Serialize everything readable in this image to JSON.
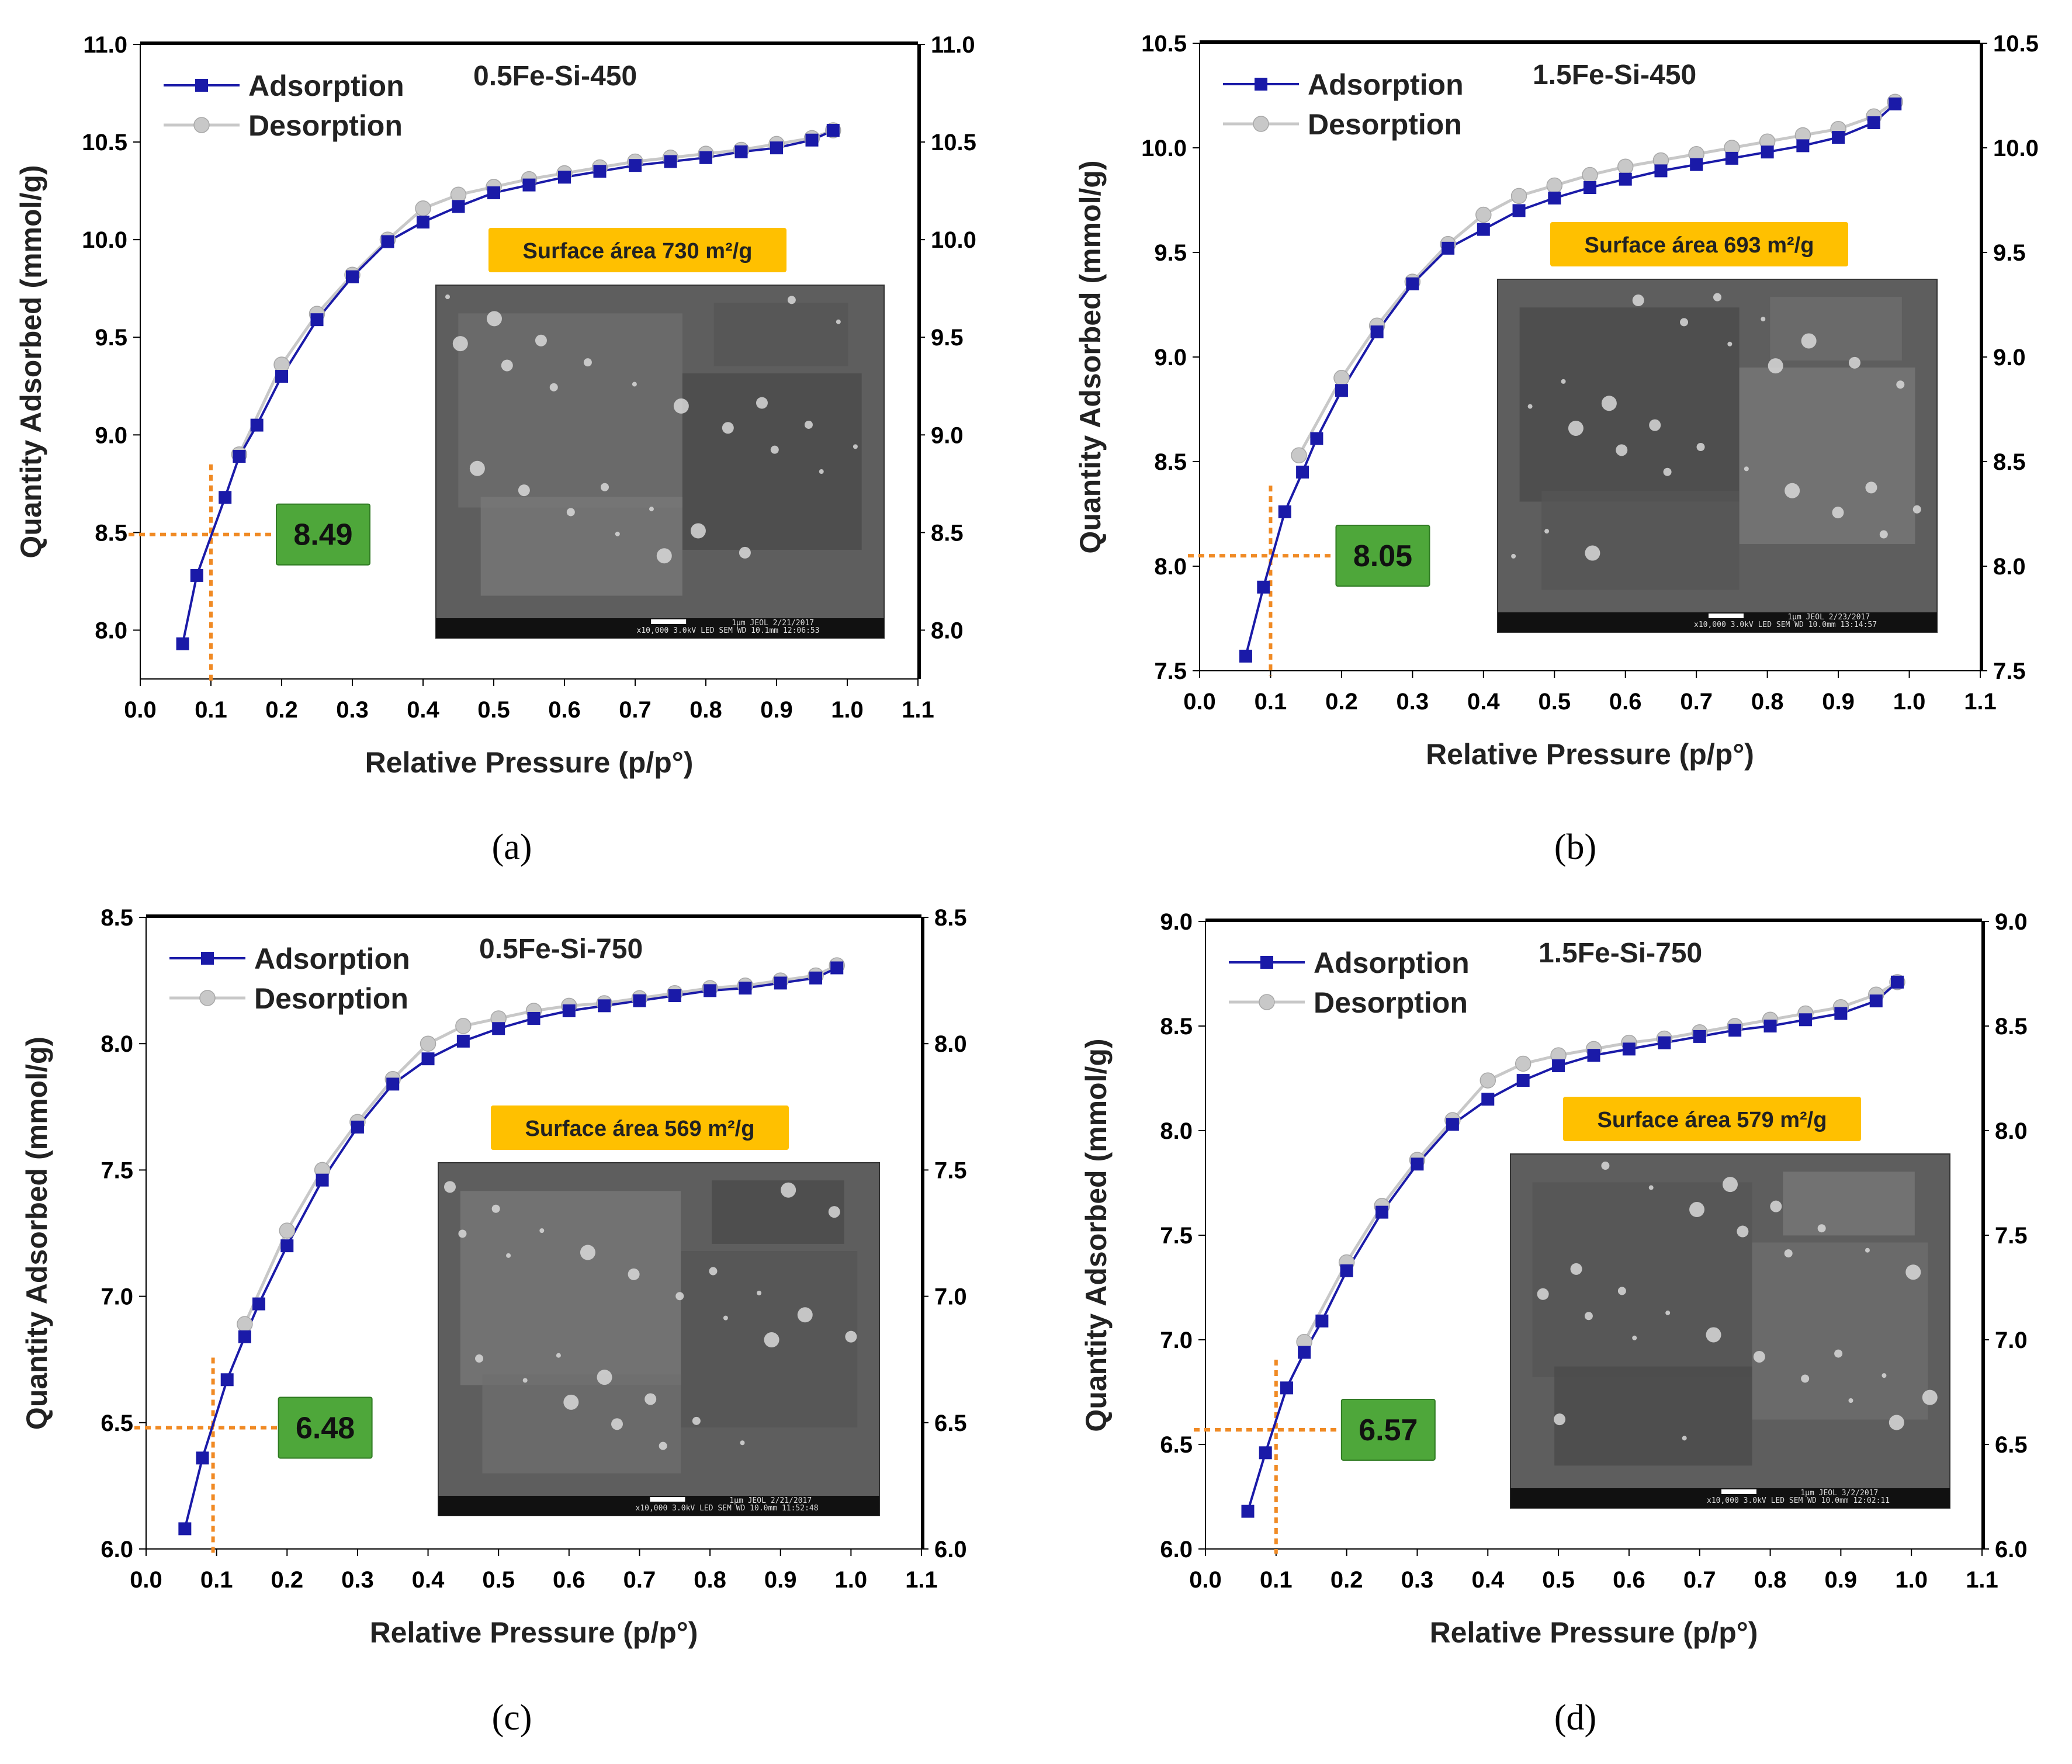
{
  "figure": {
    "colors": {
      "adsorption": "#1a1aa8",
      "desorption": "#c8c8c8",
      "guide": "#f08a24",
      "valueBox": "#4ea73a",
      "areaBox": "#ffc000",
      "axis": "#000000",
      "sem": "#5e5e5e"
    }
  },
  "chart_data": [
    {
      "type": "line",
      "caption": "(a)",
      "title": "0.5Fe-Si-450",
      "xlabel": "Relative Pressure (p/p°)",
      "ylabel": "Quantity Adsorbed (mmol/g)",
      "xlim": [
        0.0,
        1.1
      ],
      "ylim": [
        7.75,
        11.0
      ],
      "xticks": [
        "0.0",
        "0.1",
        "0.2",
        "0.3",
        "0.4",
        "0.5",
        "0.6",
        "0.7",
        "0.8",
        "0.9",
        "1.0",
        "1.1"
      ],
      "yticks": [
        "8.0",
        "8.5",
        "9.0",
        "9.5",
        "10.0",
        "10.5",
        "11.0"
      ],
      "legend": [
        "Adsorption",
        "Desorption"
      ],
      "surface_area": "Surface área 730 m²/g",
      "marker_value": "8.49",
      "marker_x": 0.1,
      "marker_y": 8.49,
      "sem_caption": "x10,000   3.0kV  LED    SEM    WD 10.1mm 12:06:53",
      "sem_scale": "1µm   JEOL    2/21/2017",
      "series": [
        {
          "name": "Adsorption",
          "x": [
            0.06,
            0.08,
            0.12,
            0.14,
            0.165,
            0.2,
            0.25,
            0.3,
            0.35,
            0.4,
            0.45,
            0.5,
            0.55,
            0.6,
            0.65,
            0.7,
            0.75,
            0.8,
            0.85,
            0.9,
            0.95,
            0.98
          ],
          "y": [
            7.93,
            8.28,
            8.68,
            8.89,
            9.05,
            9.3,
            9.59,
            9.81,
            9.99,
            10.09,
            10.17,
            10.24,
            10.28,
            10.32,
            10.35,
            10.38,
            10.4,
            10.42,
            10.45,
            10.47,
            10.51,
            10.56
          ]
        },
        {
          "name": "Desorption",
          "x": [
            0.98,
            0.95,
            0.9,
            0.85,
            0.8,
            0.75,
            0.7,
            0.65,
            0.6,
            0.55,
            0.5,
            0.45,
            0.4,
            0.35,
            0.3,
            0.25,
            0.2,
            0.14
          ],
          "y": [
            10.56,
            10.52,
            10.49,
            10.46,
            10.44,
            10.42,
            10.4,
            10.37,
            10.34,
            10.31,
            10.27,
            10.23,
            10.16,
            10.0,
            9.82,
            9.62,
            9.36,
            8.9
          ]
        }
      ]
    },
    {
      "type": "line",
      "caption": "(b)",
      "title": "1.5Fe-Si-450",
      "xlabel": "Relative Pressure (p/p°)",
      "ylabel": "Quantity Adsorbed (mmol/g)",
      "xlim": [
        0.0,
        1.1
      ],
      "ylim": [
        7.5,
        10.5
      ],
      "xticks": [
        "0.0",
        "0.1",
        "0.2",
        "0.3",
        "0.4",
        "0.5",
        "0.6",
        "0.7",
        "0.8",
        "0.9",
        "1.0",
        "1.1"
      ],
      "yticks": [
        "7.5",
        "8.0",
        "8.5",
        "9.0",
        "9.5",
        "10.0",
        "10.5"
      ],
      "legend": [
        "Adsorption",
        "Desorption"
      ],
      "surface_area": "Surface área 693 m²/g",
      "marker_value": "8.05",
      "marker_x": 0.1,
      "marker_y": 8.05,
      "sem_caption": "x10,000   3.0kV  LED    SEM    WD 10.0mm 13:14:57",
      "sem_scale": "1µm   JEOL    2/23/2017",
      "series": [
        {
          "name": "Adsorption",
          "x": [
            0.065,
            0.09,
            0.12,
            0.145,
            0.165,
            0.2,
            0.25,
            0.3,
            0.35,
            0.4,
            0.45,
            0.5,
            0.55,
            0.6,
            0.65,
            0.7,
            0.75,
            0.8,
            0.85,
            0.9,
            0.95,
            0.98
          ],
          "y": [
            7.57,
            7.9,
            8.26,
            8.45,
            8.61,
            8.84,
            9.12,
            9.35,
            9.52,
            9.61,
            9.7,
            9.76,
            9.81,
            9.85,
            9.89,
            9.92,
            9.95,
            9.98,
            10.01,
            10.05,
            10.12,
            10.21
          ]
        },
        {
          "name": "Desorption",
          "x": [
            0.98,
            0.95,
            0.9,
            0.85,
            0.8,
            0.75,
            0.7,
            0.65,
            0.6,
            0.55,
            0.5,
            0.45,
            0.4,
            0.35,
            0.3,
            0.25,
            0.2,
            0.14
          ],
          "y": [
            10.22,
            10.15,
            10.09,
            10.06,
            10.03,
            10.0,
            9.97,
            9.94,
            9.91,
            9.87,
            9.82,
            9.77,
            9.68,
            9.54,
            9.36,
            9.15,
            8.9,
            8.53
          ]
        }
      ]
    },
    {
      "type": "line",
      "caption": "(c)",
      "title": "0.5Fe-Si-750",
      "xlabel": "Relative Pressure (p/p°)",
      "ylabel": "Quantity Adsorbed (mmol/g)",
      "xlim": [
        0.0,
        1.1
      ],
      "ylim": [
        6.0,
        8.5
      ],
      "xticks": [
        "0.0",
        "0.1",
        "0.2",
        "0.3",
        "0.4",
        "0.5",
        "0.6",
        "0.7",
        "0.8",
        "0.9",
        "1.0",
        "1.1"
      ],
      "yticks": [
        "6.0",
        "6.5",
        "7.0",
        "7.5",
        "8.0",
        "8.5"
      ],
      "legend": [
        "Adsorption",
        "Desorption"
      ],
      "surface_area": "Surface área 569 m²/g",
      "marker_value": "6.48",
      "marker_x": 0.095,
      "marker_y": 6.48,
      "sem_caption": "x10,000   3.0kV  LED    SEM    WD 10.0mm 11:52:48",
      "sem_scale": "1µm   JEOL    2/21/2017",
      "series": [
        {
          "name": "Adsorption",
          "x": [
            0.055,
            0.08,
            0.115,
            0.14,
            0.16,
            0.2,
            0.25,
            0.3,
            0.35,
            0.4,
            0.45,
            0.5,
            0.55,
            0.6,
            0.65,
            0.7,
            0.75,
            0.8,
            0.85,
            0.9,
            0.95,
            0.98
          ],
          "y": [
            6.08,
            6.36,
            6.67,
            6.84,
            6.97,
            7.2,
            7.46,
            7.67,
            7.84,
            7.94,
            8.01,
            8.06,
            8.1,
            8.13,
            8.15,
            8.17,
            8.19,
            8.21,
            8.22,
            8.24,
            8.26,
            8.3
          ]
        },
        {
          "name": "Desorption",
          "x": [
            0.98,
            0.95,
            0.9,
            0.85,
            0.8,
            0.75,
            0.7,
            0.65,
            0.6,
            0.55,
            0.5,
            0.45,
            0.4,
            0.35,
            0.3,
            0.25,
            0.2,
            0.14
          ],
          "y": [
            8.31,
            8.27,
            8.25,
            8.23,
            8.22,
            8.2,
            8.18,
            8.16,
            8.15,
            8.13,
            8.1,
            8.07,
            8.0,
            7.86,
            7.69,
            7.5,
            7.26,
            6.89
          ]
        }
      ]
    },
    {
      "type": "line",
      "caption": "(d)",
      "title": "1.5Fe-Si-750",
      "xlabel": "Relative Pressure (p/p°)",
      "ylabel": "Quantity Adsorbed (mmol/g)",
      "xlim": [
        0.0,
        1.1
      ],
      "ylim": [
        6.0,
        9.0
      ],
      "xticks": [
        "0.0",
        "0.1",
        "0.2",
        "0.3",
        "0.4",
        "0.5",
        "0.6",
        "0.7",
        "0.8",
        "0.9",
        "1.0",
        "1.1"
      ],
      "yticks": [
        "6.0",
        "6.5",
        "7.0",
        "7.5",
        "8.0",
        "8.5",
        "9.0"
      ],
      "legend": [
        "Adsorption",
        "Desorption"
      ],
      "surface_area": "Surface área 579 m²/g",
      "marker_value": "6.57",
      "marker_x": 0.1,
      "marker_y": 6.57,
      "sem_caption": "x10,000   3.0kV  LED    SEM    WD 10.0mm 12:02:11",
      "sem_scale": "1µm   JEOL    3/2/2017",
      "series": [
        {
          "name": "Adsorption",
          "x": [
            0.06,
            0.085,
            0.115,
            0.14,
            0.165,
            0.2,
            0.25,
            0.3,
            0.35,
            0.4,
            0.45,
            0.5,
            0.55,
            0.6,
            0.65,
            0.7,
            0.75,
            0.8,
            0.85,
            0.9,
            0.95,
            0.98
          ],
          "y": [
            6.18,
            6.46,
            6.77,
            6.94,
            7.09,
            7.33,
            7.61,
            7.84,
            8.03,
            8.15,
            8.24,
            8.31,
            8.36,
            8.39,
            8.42,
            8.45,
            8.48,
            8.5,
            8.53,
            8.56,
            8.62,
            8.71
          ]
        },
        {
          "name": "Desorption",
          "x": [
            0.98,
            0.95,
            0.9,
            0.85,
            0.8,
            0.75,
            0.7,
            0.65,
            0.6,
            0.55,
            0.5,
            0.45,
            0.4,
            0.35,
            0.3,
            0.25,
            0.2,
            0.14
          ],
          "y": [
            8.71,
            8.65,
            8.59,
            8.56,
            8.53,
            8.5,
            8.47,
            8.44,
            8.42,
            8.39,
            8.36,
            8.32,
            8.24,
            8.05,
            7.86,
            7.64,
            7.37,
            6.99
          ]
        }
      ]
    }
  ]
}
